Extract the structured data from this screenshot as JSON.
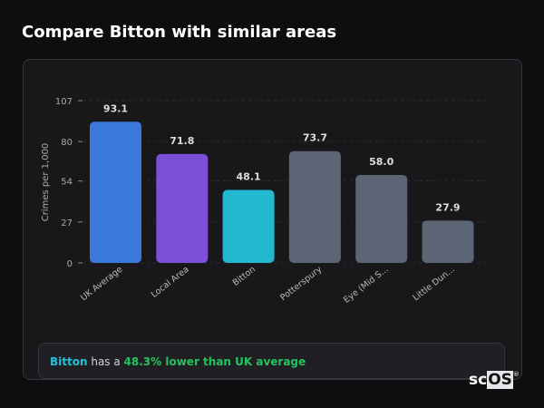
{
  "title": "Compare Bitton with similar areas",
  "summary": {
    "area": "Bitton",
    "middle": " has a ",
    "highlight": "48.3% lower than UK average"
  },
  "logo": {
    "text_a": "sc",
    "text_b": "OS",
    "mark": "®"
  },
  "colors": {
    "uk": "#3a78dc",
    "local": "#7b4fd6",
    "area": "#22b8cf",
    "other": "#5b6576"
  },
  "chart_data": {
    "type": "bar",
    "categories": [
      "UK Average",
      "Local Area",
      "Bitton",
      "Potterspury",
      "Eye (Mid S...",
      "Little Dun..."
    ],
    "values": [
      93.1,
      71.8,
      48.1,
      73.7,
      58.0,
      27.9
    ],
    "value_labels": [
      "93.1",
      "71.8",
      "48.1",
      "73.7",
      "58.0",
      "27.9"
    ],
    "bar_colors": [
      "#3a78dc",
      "#7b4fd6",
      "#22b8cf",
      "#5b6576",
      "#5b6576",
      "#5b6576"
    ],
    "ylabel": "Crimes per 1,000",
    "yticks": [
      0,
      27,
      54,
      80,
      107
    ],
    "ylim": [
      0,
      107
    ],
    "grid": true
  }
}
